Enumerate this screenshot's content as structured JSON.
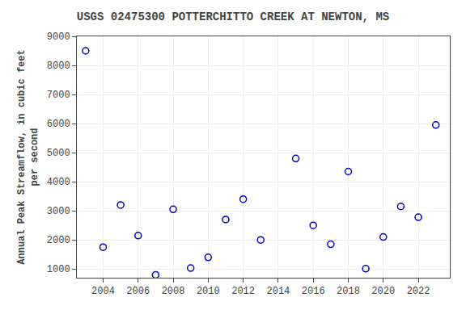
{
  "chart_data": {
    "type": "scatter",
    "title": "USGS 02475300 POTTERCHITTO CREEK AT NEWTON, MS",
    "ylabel": "Annual Peak Streamflow, in cubic feet\nper second",
    "x": [
      2003,
      2004,
      2005,
      2006,
      2007,
      2008,
      2009,
      2010,
      2011,
      2012,
      2013,
      2015,
      2016,
      2017,
      2018,
      2019,
      2020,
      2021,
      2022,
      2023
    ],
    "values": [
      8500,
      1750,
      3200,
      2150,
      800,
      3050,
      1030,
      1400,
      2700,
      3400,
      2000,
      4800,
      2500,
      1850,
      4350,
      1010,
      2100,
      3150,
      2780,
      5950
    ],
    "color": "#0000cc",
    "marker": "open_circle",
    "xlim": [
      2002.5,
      2023.8
    ],
    "ylim": [
      700,
      9000
    ],
    "xticks": [
      2004,
      2006,
      2008,
      2010,
      2012,
      2014,
      2016,
      2018,
      2020,
      2022
    ],
    "yticks": [
      1000,
      2000,
      3000,
      4000,
      5000,
      6000,
      7000,
      8000,
      9000
    ],
    "grid": true
  }
}
